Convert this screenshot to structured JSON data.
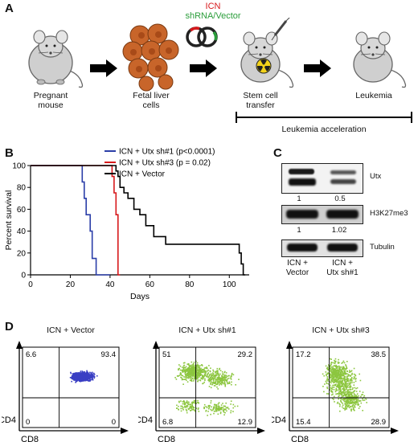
{
  "panels": {
    "a": {
      "letter": "A",
      "construct_top": "ICN",
      "construct_bottom": "shRNA/Vector",
      "colors": {
        "icn": "#d7191c",
        "shrna": "#2a9d3a",
        "cells": "#c8652a",
        "arrow": "#000000"
      },
      "steps": [
        {
          "line1": "Pregnant",
          "line2": "mouse"
        },
        {
          "line1": "Fetal liver",
          "line2": "cells"
        },
        {
          "line1": "Stem cell",
          "line2": "transfer"
        },
        {
          "line1": "Leukemia",
          "line2": ""
        }
      ],
      "bracket_label": "Leukemia acceleration"
    },
    "b": {
      "letter": "B",
      "chart_data": {
        "type": "line",
        "xlabel": "Days",
        "ylabel": "Percent survival",
        "xlim": [
          0,
          110
        ],
        "ylim": [
          0,
          100
        ],
        "xticks": [
          0,
          20,
          40,
          60,
          80,
          100
        ],
        "yticks": [
          0,
          20,
          40,
          60,
          80,
          100
        ],
        "legend_position": "top-right",
        "series": [
          {
            "name": "ICN + Utx sh#1 (p<0.0001)",
            "color": "#2b3ea8",
            "x": [
              0,
              26,
              26,
              27,
              27,
              28,
              28,
              30,
              30,
              31,
              31,
              33,
              33,
              40
            ],
            "y": [
              100,
              100,
              85,
              85,
              70,
              70,
              55,
              55,
              40,
              40,
              15,
              15,
              0,
              0
            ]
          },
          {
            "name": "ICN + Utx sh#3 (p = 0.02)",
            "color": "#d7191c",
            "x": [
              0,
              41,
              41,
              42,
              42,
              43,
              43,
              44,
              44,
              45
            ],
            "y": [
              100,
              100,
              90,
              90,
              75,
              75,
              55,
              55,
              0,
              0
            ]
          },
          {
            "name": "ICN + Vector",
            "color": "#000000",
            "x": [
              0,
              43,
              43,
              44,
              44,
              45,
              45,
              47,
              47,
              49,
              49,
              52,
              52,
              55,
              55,
              58,
              58,
              62,
              62,
              68,
              68,
              105,
              105,
              106,
              106,
              107,
              107,
              108
            ],
            "y": [
              100,
              100,
              95,
              95,
              90,
              90,
              80,
              80,
              75,
              75,
              70,
              70,
              60,
              60,
              55,
              55,
              45,
              45,
              35,
              35,
              28,
              28,
              20,
              20,
              10,
              10,
              0,
              0
            ]
          }
        ]
      }
    },
    "c": {
      "letter": "C",
      "blots": [
        {
          "label": "Utx",
          "quant": [
            "1",
            "0.5"
          ]
        },
        {
          "label": "H3K27me3",
          "quant": [
            "1",
            "1.02"
          ]
        },
        {
          "label": "Tubulin",
          "quant": []
        }
      ],
      "lanes": [
        {
          "line1": "ICN +",
          "line2": "Vector"
        },
        {
          "line1": "ICN +",
          "line2": "Utx sh#1"
        }
      ]
    },
    "d": {
      "letter": "D",
      "x_axis_label": "CD8",
      "y_axis_label": "CD4",
      "plots": [
        {
          "title": "ICN + Vector",
          "color": "#3a3fc4",
          "q_tl": "6.6",
          "q_tr": "93.4",
          "q_bl": "0",
          "q_br": "0"
        },
        {
          "title": "ICN + Utx sh#1",
          "color": "#8cc63f",
          "q_tl": "51",
          "q_tr": "29.2",
          "q_bl": "6.8",
          "q_br": "12.9"
        },
        {
          "title": "ICN + Utx sh#3",
          "color": "#8cc63f",
          "q_tl": "17.2",
          "q_tr": "38.5",
          "q_bl": "15.4",
          "q_br": "28.9"
        }
      ]
    }
  }
}
